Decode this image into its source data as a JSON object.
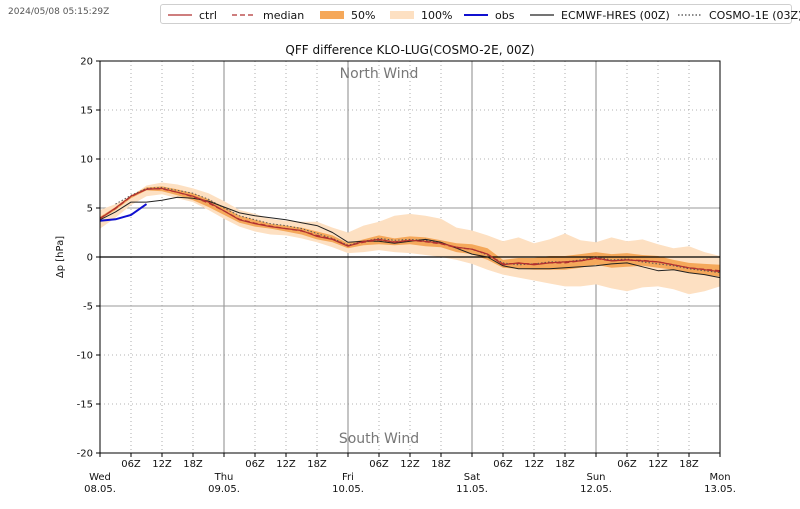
{
  "timestamp": "2024/05/08 05:15:29Z",
  "legend": [
    {
      "label": "ctrl",
      "kind": "line",
      "color": "#b03030",
      "dash": "solid"
    },
    {
      "label": "median",
      "kind": "line",
      "color": "#b03030",
      "dash": "dashed"
    },
    {
      "label": "50%",
      "kind": "patch",
      "color": "#f5a85a"
    },
    {
      "label": "100%",
      "kind": "patch",
      "color": "#fde0c2"
    },
    {
      "label": "obs",
      "kind": "line",
      "color": "#1010d0",
      "dash": "solid"
    },
    {
      "label": "ECMWF-HRES (00Z)",
      "kind": "line",
      "color": "#222222",
      "dash": "solid"
    },
    {
      "label": "COSMO-1E (03Z)",
      "kind": "line",
      "color": "#444444",
      "dash": "dotted"
    }
  ],
  "chart_data": {
    "type": "line",
    "title": "QFF difference KLO-LUG(COSMO-2E, 00Z)",
    "ylabel": "Δp [hPa]",
    "xlabel": "",
    "ylim": [
      -20,
      20
    ],
    "yticks": [
      -20,
      -15,
      -10,
      -5,
      0,
      5,
      10,
      15,
      20
    ],
    "xlim_hours": [
      0,
      120
    ],
    "x_unit": "hours from Wed 08.05. 00Z",
    "grid": true,
    "annotations": {
      "top": "North Wind",
      "bottom": "South Wind"
    },
    "x_hour_ticks": [
      {
        "h": 6,
        "label": "06Z"
      },
      {
        "h": 12,
        "label": "12Z"
      },
      {
        "h": 18,
        "label": "18Z"
      },
      {
        "h": 30,
        "label": "06Z"
      },
      {
        "h": 36,
        "label": "12Z"
      },
      {
        "h": 42,
        "label": "18Z"
      },
      {
        "h": 54,
        "label": "06Z"
      },
      {
        "h": 60,
        "label": "12Z"
      },
      {
        "h": 66,
        "label": "18Z"
      },
      {
        "h": 78,
        "label": "06Z"
      },
      {
        "h": 84,
        "label": "12Z"
      },
      {
        "h": 90,
        "label": "18Z"
      },
      {
        "h": 102,
        "label": "06Z"
      },
      {
        "h": 108,
        "label": "12Z"
      },
      {
        "h": 114,
        "label": "18Z"
      }
    ],
    "x_day_ticks": [
      {
        "h": 0,
        "day": "Wed",
        "date": "08.05."
      },
      {
        "h": 24,
        "day": "Thu",
        "date": "09.05."
      },
      {
        "h": 48,
        "day": "Fri",
        "date": "10.05."
      },
      {
        "h": 72,
        "day": "Sat",
        "date": "11.05."
      },
      {
        "h": 96,
        "day": "Sun",
        "date": "12.05."
      },
      {
        "h": 120,
        "day": "Mon",
        "date": "13.05."
      }
    ],
    "x": [
      0,
      3,
      6,
      9,
      12,
      15,
      18,
      21,
      24,
      27,
      30,
      33,
      36,
      39,
      42,
      45,
      48,
      51,
      54,
      57,
      60,
      63,
      66,
      69,
      72,
      75,
      78,
      81,
      84,
      87,
      90,
      93,
      96,
      99,
      102,
      105,
      108,
      111,
      114,
      117,
      120
    ],
    "band_100": {
      "lower": [
        2.9,
        4.0,
        5.3,
        6.2,
        6.4,
        6.0,
        5.6,
        4.8,
        3.9,
        3.1,
        2.6,
        2.3,
        2.2,
        1.9,
        1.5,
        1.0,
        0.4,
        0.5,
        0.7,
        0.5,
        0.4,
        0.2,
        0.0,
        -0.3,
        -0.7,
        -1.3,
        -1.8,
        -2.1,
        -2.4,
        -2.7,
        -3.0,
        -3.0,
        -2.8,
        -3.2,
        -3.5,
        -3.1,
        -3.0,
        -3.3,
        -3.8,
        -3.5,
        -3.0
      ],
      "upper": [
        4.8,
        5.4,
        6.2,
        7.3,
        7.6,
        7.4,
        7.0,
        6.5,
        5.7,
        4.8,
        4.4,
        3.9,
        3.7,
        3.6,
        3.6,
        3.0,
        2.5,
        3.2,
        3.6,
        4.2,
        4.4,
        4.2,
        3.9,
        3.0,
        2.7,
        2.2,
        1.6,
        2.0,
        1.4,
        1.8,
        2.4,
        1.7,
        1.5,
        2.0,
        1.6,
        1.8,
        1.3,
        0.9,
        1.1,
        0.5,
        0.1
      ]
    },
    "band_50": {
      "lower": [
        3.8,
        4.8,
        6.0,
        6.8,
        6.7,
        6.3,
        5.8,
        5.1,
        4.3,
        3.5,
        3.1,
        2.9,
        2.6,
        2.3,
        1.8,
        1.5,
        0.9,
        1.2,
        1.3,
        1.2,
        1.3,
        1.1,
        1.0,
        0.5,
        0.3,
        -0.3,
        -1.1,
        -1.2,
        -1.3,
        -1.3,
        -1.3,
        -1.1,
        -0.8,
        -1.1,
        -1.0,
        -0.9,
        -1.1,
        -1.3,
        -1.6,
        -1.8,
        -2.0
      ],
      "upper": [
        4.1,
        5.1,
        6.3,
        7.1,
        7.2,
        6.9,
        6.5,
        5.9,
        5.1,
        4.2,
        3.8,
        3.4,
        3.2,
        3.0,
        2.6,
        2.2,
        1.4,
        1.8,
        2.2,
        1.9,
        2.1,
        2.0,
        1.7,
        1.4,
        1.3,
        0.9,
        -0.3,
        -0.1,
        -0.1,
        0.1,
        0.1,
        0.3,
        0.5,
        0.3,
        0.4,
        0.2,
        0.1,
        -0.3,
        -0.6,
        -0.7,
        -0.8
      ]
    },
    "series": [
      {
        "name": "ctrl",
        "color": "#b03030",
        "dash": "solid",
        "width": 1.2,
        "values": [
          3.9,
          5.0,
          6.2,
          6.9,
          7.0,
          6.6,
          6.2,
          5.6,
          4.7,
          3.8,
          3.4,
          3.1,
          2.9,
          2.7,
          2.1,
          1.8,
          1.1,
          1.6,
          1.8,
          1.5,
          1.7,
          1.6,
          1.4,
          1.0,
          0.8,
          0.3,
          -0.8,
          -0.6,
          -0.8,
          -0.6,
          -0.5,
          -0.4,
          -0.1,
          -0.4,
          -0.3,
          -0.4,
          -0.5,
          -0.8,
          -1.1,
          -1.3,
          -1.5
        ]
      },
      {
        "name": "median",
        "color": "#b03030",
        "dash": "dashed",
        "width": 1.2,
        "values": [
          3.95,
          4.95,
          6.15,
          6.95,
          6.95,
          6.6,
          6.15,
          5.5,
          4.7,
          3.85,
          3.45,
          3.15,
          2.9,
          2.65,
          2.2,
          1.85,
          1.15,
          1.5,
          1.75,
          1.55,
          1.7,
          1.55,
          1.35,
          0.95,
          0.8,
          0.3,
          -0.7,
          -0.65,
          -0.7,
          -0.6,
          -0.6,
          -0.4,
          -0.15,
          -0.4,
          -0.3,
          -0.35,
          -0.5,
          -0.8,
          -1.1,
          -1.25,
          -1.4
        ]
      },
      {
        "name": "obs",
        "color": "#1010d0",
        "dash": "solid",
        "width": 2.0,
        "values": [
          3.7,
          3.85,
          4.3,
          5.4,
          null,
          null,
          null,
          null,
          null,
          null,
          null,
          null,
          null,
          null,
          null,
          null,
          null,
          null,
          null,
          null,
          null,
          null,
          null,
          null,
          null,
          null,
          null,
          null,
          null,
          null,
          null,
          null,
          null,
          null,
          null,
          null,
          null,
          null,
          null,
          null,
          null
        ]
      },
      {
        "name": "ECMWF-HRES (00Z)",
        "color": "#222222",
        "dash": "solid",
        "width": 1.0,
        "values": [
          3.8,
          4.6,
          5.6,
          5.6,
          5.8,
          6.1,
          6.0,
          5.7,
          5.1,
          4.5,
          4.2,
          4.0,
          3.8,
          3.5,
          3.2,
          2.5,
          1.5,
          1.6,
          1.6,
          1.4,
          1.6,
          1.8,
          1.5,
          0.9,
          0.3,
          0.0,
          -0.9,
          -1.2,
          -1.2,
          -1.2,
          -1.1,
          -1.0,
          -0.9,
          -0.7,
          -0.6,
          -1.0,
          -1.4,
          -1.3,
          -1.6,
          -1.8,
          -2.1
        ]
      },
      {
        "name": "COSMO-1E (03Z)",
        "color": "#555555",
        "dash": "dotted",
        "width": 1.0,
        "values": [
          null,
          5.4,
          6.3,
          7.0,
          7.1,
          6.8,
          6.5,
          5.9,
          5.0,
          4.2,
          3.8,
          3.4,
          3.2,
          2.9,
          2.4,
          1.9,
          1.2,
          1.6,
          1.9,
          1.7,
          1.8,
          1.7,
          1.4,
          1.0,
          0.8,
          0.2,
          -0.6,
          -0.8,
          -0.7,
          -0.5,
          -0.5,
          -0.3,
          0.0,
          -0.3,
          -0.2,
          -0.5,
          -0.7,
          -0.9,
          -1.2,
          -1.4,
          -1.6
        ]
      }
    ]
  }
}
